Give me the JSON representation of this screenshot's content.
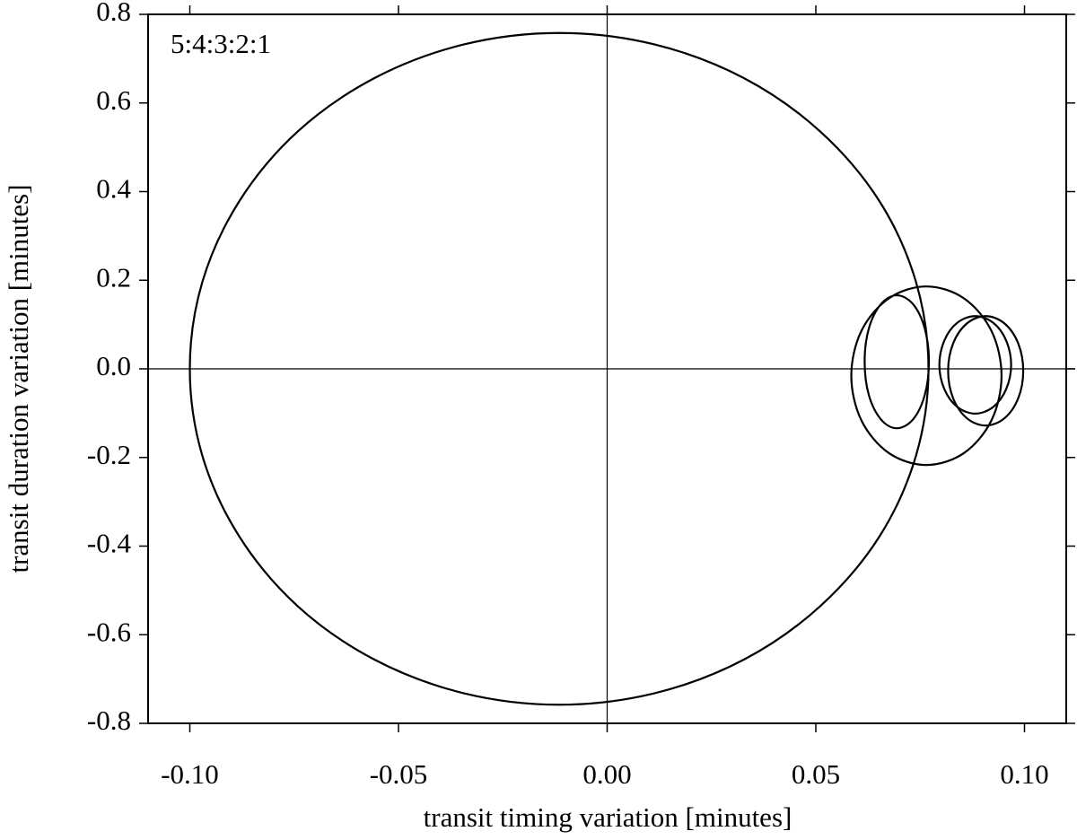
{
  "chart_data": {
    "type": "line",
    "annotation": "5:4:3:2:1",
    "x_label": "transit timing variation [minutes]",
    "y_label": "transit duration variation [minutes]",
    "xlim": [
      -0.11,
      0.11
    ],
    "ylim": [
      -0.8,
      0.8
    ],
    "xticks": [
      {
        "value": -0.1,
        "label": "-0.10"
      },
      -0.05,
      {
        "value": 0,
        "label": "0.00"
      },
      0.05,
      {
        "value": 0.1,
        "label": "0.10"
      }
    ],
    "yticks": [
      -0.8,
      -0.6,
      -0.4,
      -0.2,
      {
        "value": 0,
        "label": "0.0"
      },
      0.2,
      0.4,
      0.6,
      0.8
    ],
    "zero_lines": true,
    "color": "#000000",
    "x": [
      0.077,
      0.074,
      0.0652,
      0.051,
      0.0328,
      0.0114,
      -0.0115,
      -0.0344,
      -0.0558,
      -0.0741,
      -0.0881,
      -0.097,
      -0.1,
      -0.097,
      -0.0881,
      -0.0741,
      -0.0558,
      -0.0344,
      -0.0115,
      0.0114,
      0.0328,
      0.051,
      0.0652,
      0.074,
      0.077,
      null,
      0.0945,
      0.0921,
      0.0855,
      0.0765,
      0.0675,
      0.0609,
      0.0585,
      0.0609,
      0.0675,
      0.0765,
      0.0855,
      0.0921,
      0.0945,
      null,
      0.0771,
      0.0761,
      0.0733,
      0.0694,
      0.0656,
      0.0627,
      0.0617,
      0.0627,
      0.0656,
      0.0694,
      0.0733,
      0.0761,
      0.0771,
      null,
      0.0968,
      0.0956,
      0.0925,
      0.0882,
      0.0839,
      0.0808,
      0.0796,
      0.0808,
      0.0839,
      0.0882,
      0.0925,
      0.0956,
      0.0968,
      null,
      0.0997,
      0.0985,
      0.0952,
      0.0907,
      0.0862,
      0.0829,
      0.0817,
      0.0829,
      0.0862,
      0.0907,
      0.0952,
      0.0985,
      0.0997
    ],
    "values": [
      0,
      0.196,
      0.379,
      0.536,
      0.656,
      0.732,
      0.758,
      0.732,
      0.656,
      0.536,
      0.379,
      0.196,
      0,
      -0.196,
      -0.379,
      -0.536,
      -0.656,
      -0.732,
      -0.758,
      -0.732,
      -0.656,
      -0.536,
      -0.379,
      -0.196,
      0,
      null,
      -0.0155,
      0.0853,
      0.159,
      0.186,
      0.159,
      0.0853,
      -0.0155,
      -0.116,
      -0.19,
      -0.217,
      -0.19,
      -0.116,
      -0.0155,
      null,
      0.016,
      0.091,
      0.146,
      0.166,
      0.146,
      0.091,
      0.016,
      -0.059,
      -0.114,
      -0.134,
      -0.114,
      -0.059,
      0.016,
      null,
      0.009,
      0.064,
      0.104,
      0.119,
      0.104,
      0.064,
      0.009,
      -0.046,
      -0.086,
      -0.101,
      -0.086,
      -0.046,
      0.009,
      null,
      -0.0045,
      0.0573,
      0.1025,
      0.119,
      0.1025,
      0.0573,
      -0.0045,
      -0.0663,
      -0.1115,
      -0.128,
      -0.1115,
      -0.0663,
      -0.0045
    ]
  }
}
